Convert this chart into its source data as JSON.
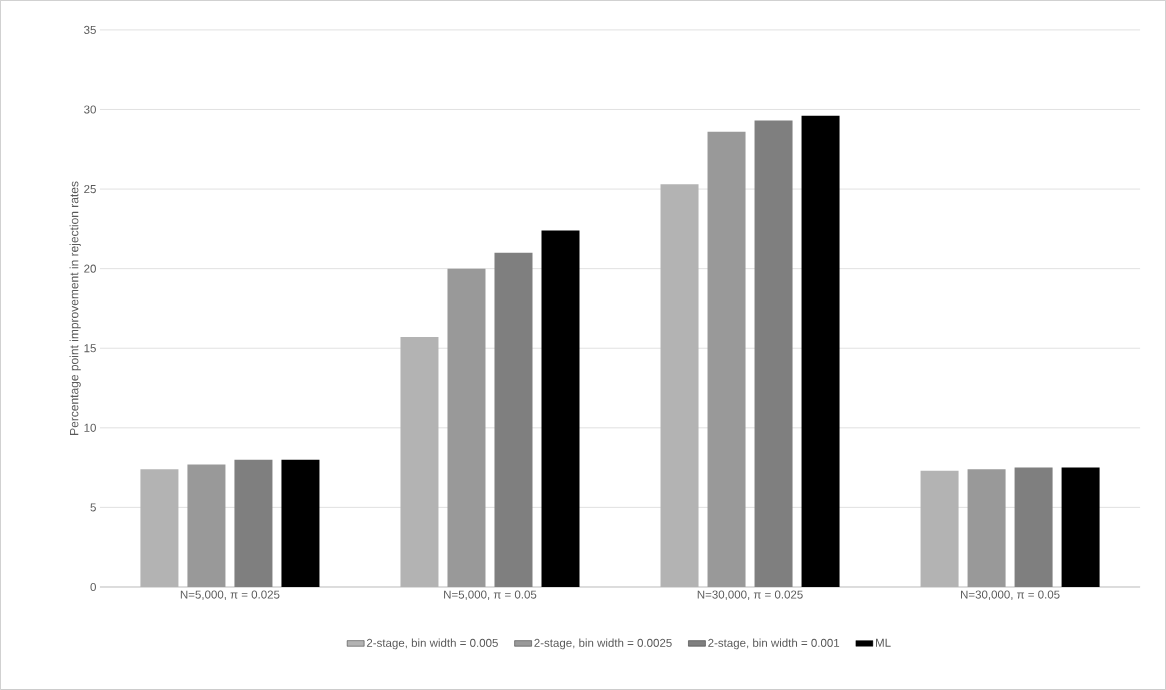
{
  "chart_data": {
    "type": "bar",
    "ylabel": "Percentage point improvement in rejection rates",
    "categories": [
      "N=5,000, π = 0.025",
      "N=5,000, π = 0.05",
      "N=30,000, π = 0.025",
      "N=30,000, π = 0.05"
    ],
    "series": [
      {
        "name": "2-stage, bin width = 0.005",
        "color": "#b3b3b3",
        "values": [
          7.4,
          15.7,
          25.3,
          7.3
        ]
      },
      {
        "name": "2-stage, bin width = 0.0025",
        "color": "#999999",
        "values": [
          7.7,
          20.0,
          28.6,
          7.4
        ]
      },
      {
        "name": "2-stage, bin width = 0.001",
        "color": "#7f7f7f",
        "values": [
          8.0,
          21.0,
          29.3,
          7.5
        ]
      },
      {
        "name": "ML",
        "color": "#000000",
        "values": [
          8.0,
          22.4,
          29.6,
          7.5
        ]
      }
    ],
    "ylim": [
      0,
      35
    ],
    "yticks": [
      0,
      5,
      10,
      15,
      20,
      25,
      30,
      35
    ],
    "grid": "y",
    "legend": "bottom"
  }
}
